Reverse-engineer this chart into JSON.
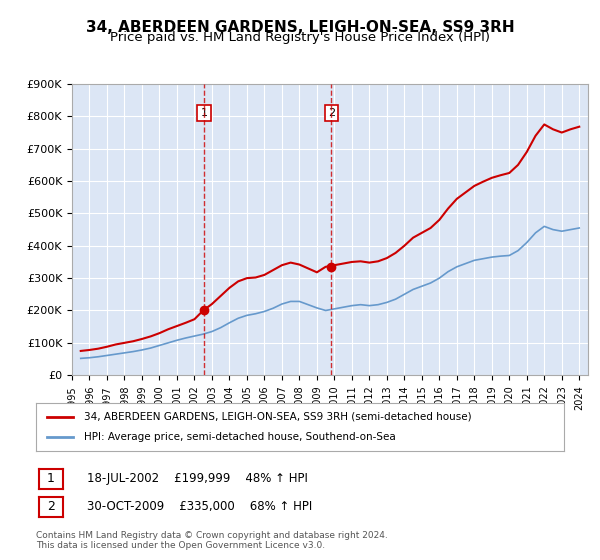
{
  "title": "34, ABERDEEN GARDENS, LEIGH-ON-SEA, SS9 3RH",
  "subtitle": "Price paid vs. HM Land Registry's House Price Index (HPI)",
  "title_fontsize": 11,
  "subtitle_fontsize": 9.5,
  "xlabel": "",
  "ylabel": "",
  "ylim": [
    0,
    900000
  ],
  "yticks": [
    0,
    100000,
    200000,
    300000,
    400000,
    500000,
    600000,
    700000,
    800000,
    900000
  ],
  "ytick_labels": [
    "£0",
    "£100K",
    "£200K",
    "£300K",
    "£400K",
    "£500K",
    "£600K",
    "£700K",
    "£800K",
    "£900K"
  ],
  "background_color": "#ffffff",
  "plot_bg_color": "#dce6f5",
  "grid_color": "#ffffff",
  "sale1_date_x": 2002.54,
  "sale1_price": 199999,
  "sale1_label": "1",
  "sale2_date_x": 2009.83,
  "sale2_price": 335000,
  "sale2_label": "2",
  "sale1_info": "18-JUL-2002    £199,999    48% ↑ HPI",
  "sale2_info": "30-OCT-2009    £335,000    68% ↑ HPI",
  "legend_line1": "34, ABERDEEN GARDENS, LEIGH-ON-SEA, SS9 3RH (semi-detached house)",
  "legend_line2": "HPI: Average price, semi-detached house, Southend-on-Sea",
  "footer": "Contains HM Land Registry data © Crown copyright and database right 2024.\nThis data is licensed under the Open Government Licence v3.0.",
  "red_line_color": "#cc0000",
  "blue_line_color": "#6699cc",
  "hpi_years": [
    1995.5,
    1996.0,
    1996.5,
    1997.0,
    1997.5,
    1998.0,
    1998.5,
    1999.0,
    1999.5,
    2000.0,
    2000.5,
    2001.0,
    2001.5,
    2002.0,
    2002.5,
    2003.0,
    2003.5,
    2004.0,
    2004.5,
    2005.0,
    2005.5,
    2006.0,
    2006.5,
    2007.0,
    2007.5,
    2008.0,
    2008.5,
    2009.0,
    2009.5,
    2010.0,
    2010.5,
    2011.0,
    2011.5,
    2012.0,
    2012.5,
    2013.0,
    2013.5,
    2014.0,
    2014.5,
    2015.0,
    2015.5,
    2016.0,
    2016.5,
    2017.0,
    2017.5,
    2018.0,
    2018.5,
    2019.0,
    2019.5,
    2020.0,
    2020.5,
    2021.0,
    2021.5,
    2022.0,
    2022.5,
    2023.0,
    2023.5,
    2024.0
  ],
  "hpi_values": [
    52000,
    54000,
    57000,
    61000,
    65000,
    69000,
    73000,
    78000,
    84000,
    92000,
    100000,
    108000,
    115000,
    121000,
    127000,
    135000,
    147000,
    162000,
    176000,
    185000,
    190000,
    197000,
    207000,
    220000,
    228000,
    228000,
    218000,
    208000,
    200000,
    205000,
    210000,
    215000,
    218000,
    215000,
    218000,
    225000,
    235000,
    250000,
    265000,
    275000,
    285000,
    300000,
    320000,
    335000,
    345000,
    355000,
    360000,
    365000,
    368000,
    370000,
    385000,
    410000,
    440000,
    460000,
    450000,
    445000,
    450000,
    455000
  ],
  "red_years": [
    1995.5,
    1996.0,
    1996.5,
    1997.0,
    1997.5,
    1998.0,
    1998.5,
    1999.0,
    1999.5,
    2000.0,
    2000.5,
    2001.0,
    2001.5,
    2002.0,
    2002.5,
    2003.0,
    2003.5,
    2004.0,
    2004.5,
    2005.0,
    2005.5,
    2006.0,
    2006.5,
    2007.0,
    2007.5,
    2008.0,
    2008.5,
    2009.0,
    2009.5,
    2010.0,
    2010.5,
    2011.0,
    2011.5,
    2012.0,
    2012.5,
    2013.0,
    2013.5,
    2014.0,
    2014.5,
    2015.0,
    2015.5,
    2016.0,
    2016.5,
    2017.0,
    2017.5,
    2018.0,
    2018.5,
    2019.0,
    2019.5,
    2020.0,
    2020.5,
    2021.0,
    2021.5,
    2022.0,
    2022.5,
    2023.0,
    2023.5,
    2024.0
  ],
  "red_values": [
    75000,
    78000,
    82000,
    88000,
    95000,
    100000,
    105000,
    112000,
    120000,
    130000,
    142000,
    152000,
    162000,
    173000,
    199999,
    220000,
    245000,
    270000,
    290000,
    300000,
    302000,
    310000,
    325000,
    340000,
    348000,
    342000,
    330000,
    318000,
    335000,
    340000,
    345000,
    350000,
    352000,
    348000,
    352000,
    362000,
    378000,
    400000,
    425000,
    440000,
    455000,
    480000,
    515000,
    545000,
    565000,
    585000,
    598000,
    610000,
    618000,
    625000,
    650000,
    690000,
    740000,
    775000,
    760000,
    750000,
    760000,
    768000
  ],
  "xtick_years": [
    1995,
    1996,
    1997,
    1998,
    1999,
    2000,
    2001,
    2002,
    2003,
    2004,
    2005,
    2006,
    2007,
    2008,
    2009,
    2010,
    2011,
    2012,
    2013,
    2014,
    2015,
    2016,
    2017,
    2018,
    2019,
    2020,
    2021,
    2022,
    2023,
    2024
  ]
}
